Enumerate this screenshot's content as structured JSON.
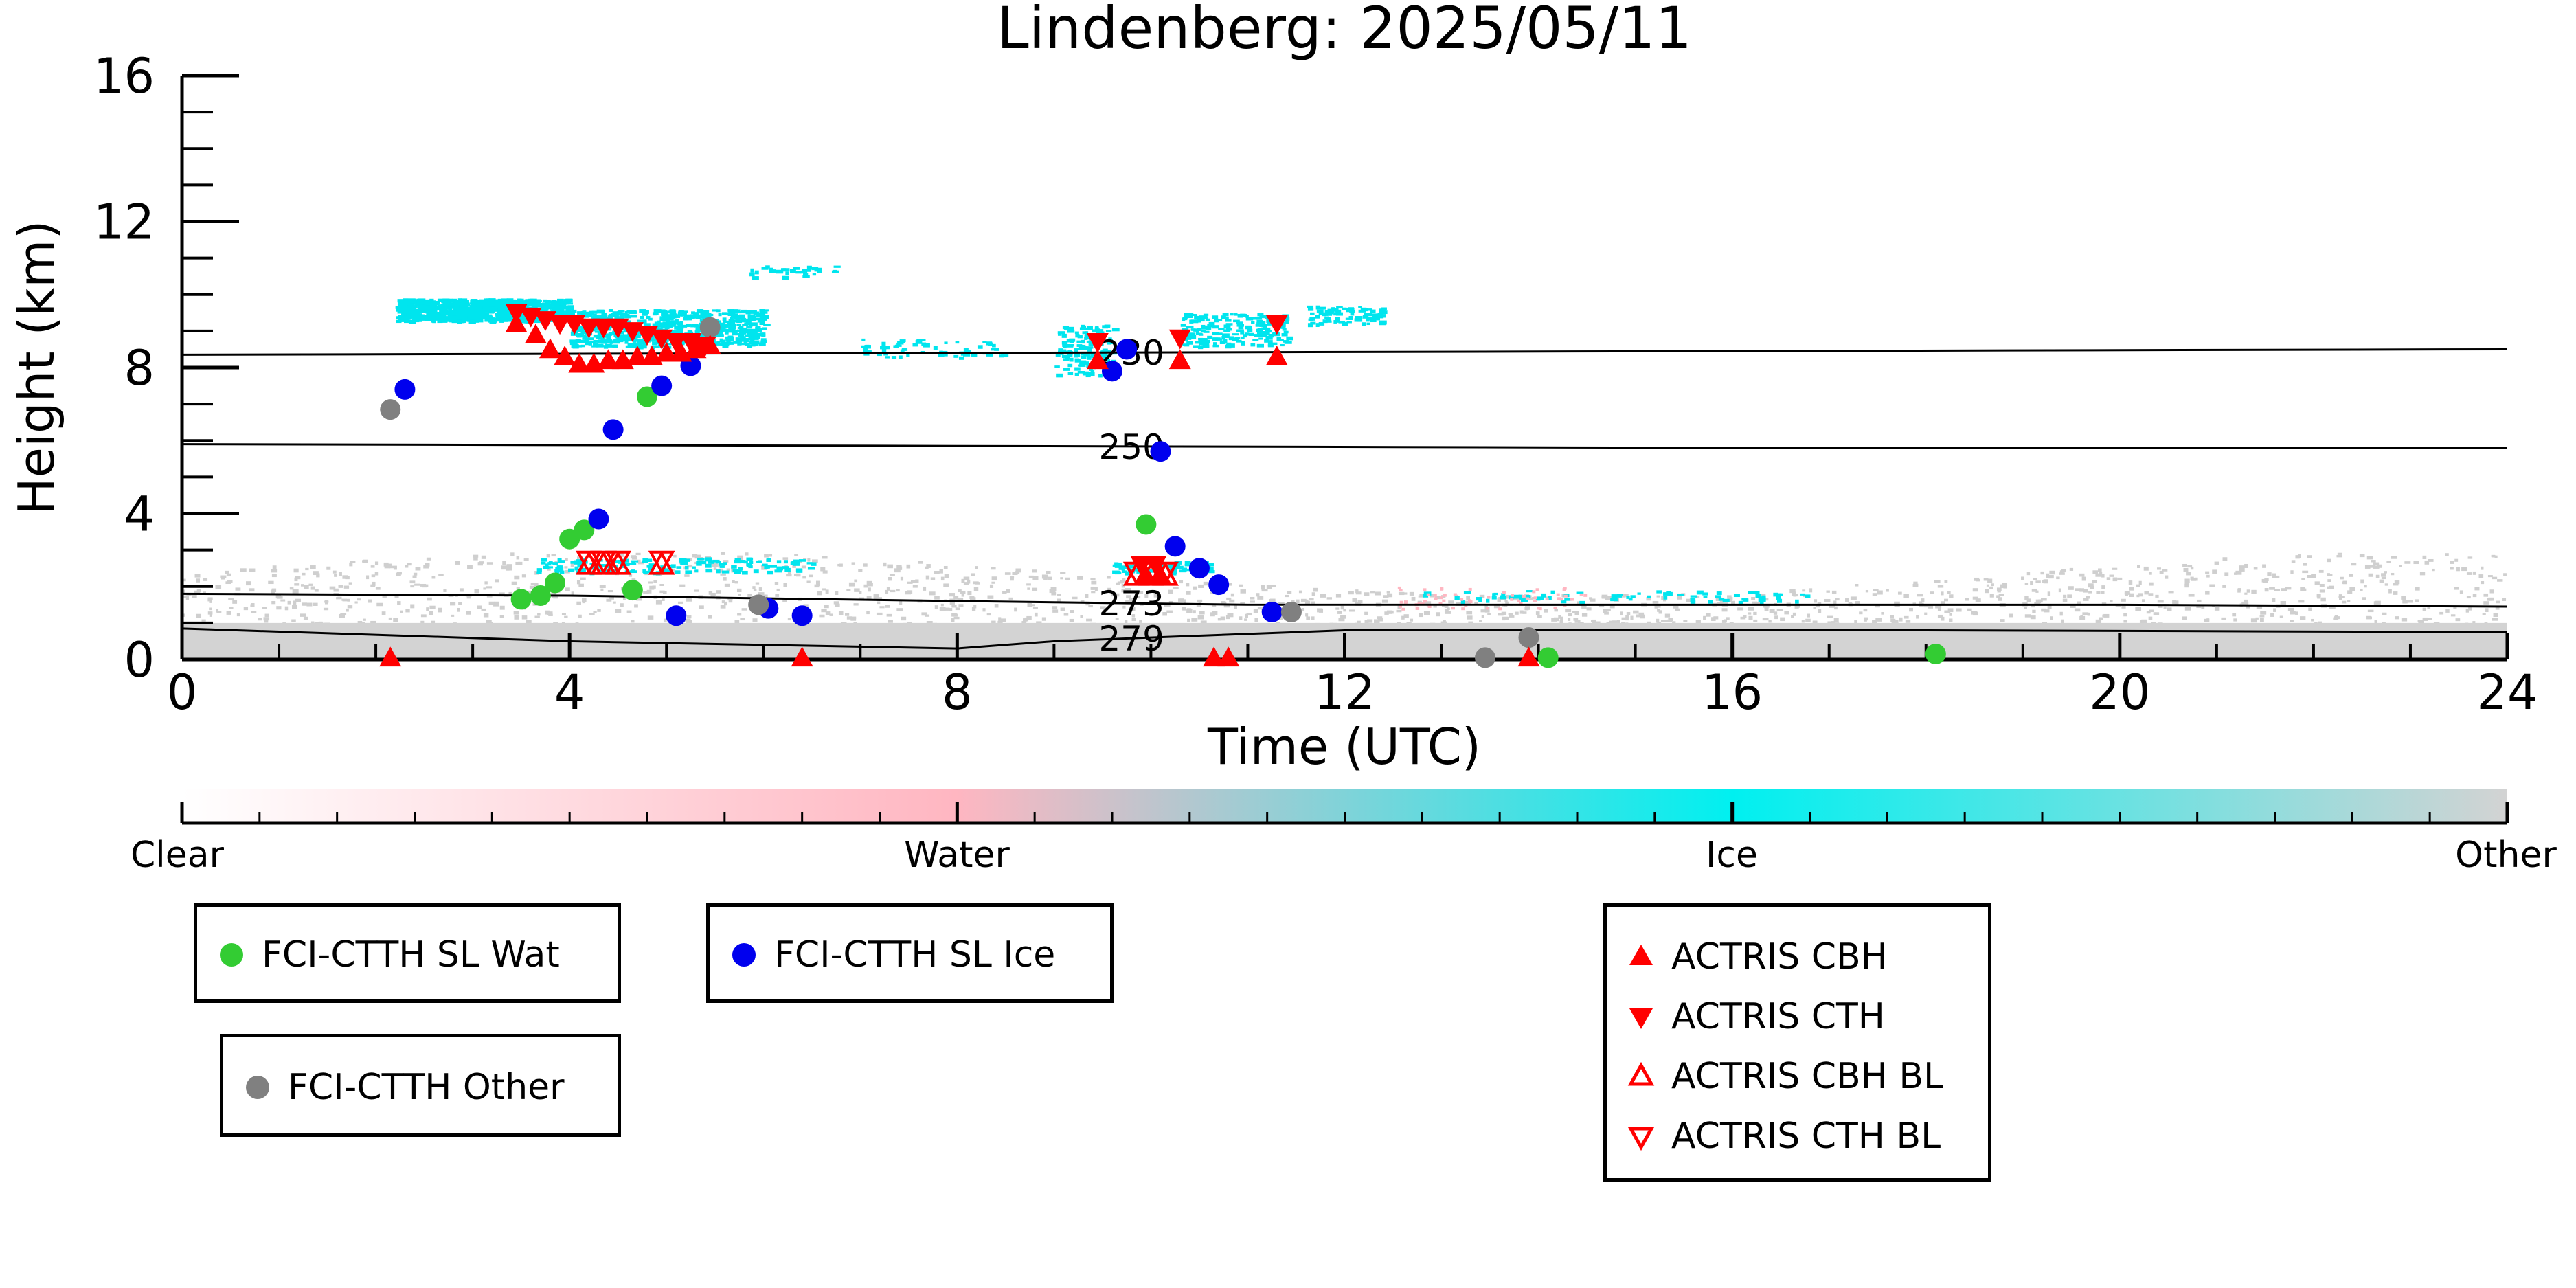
{
  "title": "Lindenberg: 2025/05/11",
  "colors": {
    "water_dot": "#33cc33",
    "ice_dot": "#0000ee",
    "other_dot": "#808080",
    "actris": "#ff0000",
    "cyan": "#00e5ee",
    "pink": "#ffb6c1",
    "gray_bg": "#d3d3d3"
  },
  "chart_data": {
    "type": "scatter",
    "title": "Lindenberg: 2025/05/11",
    "xlabel": "Time (UTC)",
    "ylabel": "Height (km)",
    "xlim": [
      0,
      24
    ],
    "ylim": [
      0,
      16
    ],
    "xticks": [
      "0",
      "4",
      "8",
      "12",
      "16",
      "20",
      "24"
    ],
    "yticks": [
      "0",
      "4",
      "8",
      "12",
      "16"
    ],
    "xtick_values": [
      0,
      4,
      8,
      12,
      16,
      20,
      24
    ],
    "ytick_values": [
      0,
      4,
      8,
      12,
      16
    ],
    "isotherms": [
      {
        "label": "230",
        "label_x": 9.8,
        "points": [
          [
            0,
            8.35
          ],
          [
            8,
            8.4
          ],
          [
            16,
            8.45
          ],
          [
            24,
            8.5
          ]
        ]
      },
      {
        "label": "250",
        "label_x": 9.8,
        "points": [
          [
            0,
            5.9
          ],
          [
            8,
            5.85
          ],
          [
            16,
            5.8
          ],
          [
            24,
            5.8
          ]
        ]
      },
      {
        "label": "273",
        "label_x": 9.8,
        "points": [
          [
            0,
            1.8
          ],
          [
            4,
            1.75
          ],
          [
            8,
            1.6
          ],
          [
            11,
            1.5
          ],
          [
            14,
            1.5
          ],
          [
            20,
            1.5
          ],
          [
            24,
            1.45
          ]
        ]
      },
      {
        "label": "279",
        "label_x": 9.8,
        "points": [
          [
            0,
            0.85
          ],
          [
            4,
            0.5
          ],
          [
            8,
            0.3
          ],
          [
            9,
            0.5
          ],
          [
            12,
            0.8
          ],
          [
            18,
            0.8
          ],
          [
            24,
            0.75
          ]
        ]
      }
    ],
    "series": [
      {
        "name": "FCI-CTTH SL Wat",
        "marker": "circle",
        "color": "#33cc33",
        "x": [
          3.5,
          3.7,
          3.85,
          4.0,
          4.15,
          4.65,
          4.8,
          9.95,
          14.1,
          18.1
        ],
        "y": [
          1.65,
          1.75,
          2.1,
          3.3,
          3.55,
          1.9,
          7.2,
          3.7,
          0.05,
          0.15
        ]
      },
      {
        "name": "FCI-CTTH SL Ice",
        "marker": "circle",
        "color": "#0000ee",
        "x": [
          2.3,
          4.3,
          4.45,
          4.95,
          5.1,
          5.25,
          6.05,
          6.4,
          9.6,
          9.75,
          10.1,
          10.25,
          10.5,
          10.7,
          11.25
        ],
        "y": [
          7.4,
          3.85,
          6.3,
          7.5,
          1.2,
          8.05,
          1.4,
          1.2,
          7.9,
          8.5,
          5.7,
          3.1,
          2.5,
          2.05,
          1.3
        ]
      },
      {
        "name": "FCI-CTTH Other",
        "marker": "circle",
        "color": "#808080",
        "x": [
          2.15,
          5.45,
          5.95,
          11.45,
          13.45,
          13.9
        ],
        "y": [
          6.85,
          9.1,
          1.5,
          1.3,
          0.05,
          0.6
        ]
      },
      {
        "name": "ACTRIS CBH",
        "marker": "triangle-up",
        "color": "#ff0000",
        "x": [
          3.45,
          3.65,
          3.8,
          3.95,
          4.1,
          4.25,
          4.4,
          4.55,
          4.7,
          4.85,
          5.0,
          5.15,
          5.3,
          5.45,
          9.45,
          9.95,
          10.1,
          10.3,
          11.3,
          2.15,
          6.4,
          10.65,
          10.8,
          13.9
        ],
        "y": [
          9.2,
          8.9,
          8.5,
          8.3,
          8.1,
          8.1,
          8.2,
          8.2,
          8.3,
          8.3,
          8.4,
          8.4,
          8.5,
          8.6,
          8.2,
          2.3,
          2.3,
          8.2,
          8.3,
          0.05,
          0.05,
          0.05,
          0.05,
          0.05
        ]
      },
      {
        "name": "ACTRIS CTH",
        "marker": "triangle-down",
        "color": "#ff0000",
        "x": [
          3.45,
          3.6,
          3.75,
          3.9,
          4.05,
          4.2,
          4.35,
          4.5,
          4.65,
          4.8,
          4.95,
          5.1,
          5.25,
          5.4,
          9.45,
          9.9,
          10.05,
          10.3,
          11.3
        ],
        "y": [
          9.5,
          9.4,
          9.3,
          9.2,
          9.2,
          9.1,
          9.1,
          9.1,
          9.0,
          8.9,
          8.8,
          8.7,
          8.7,
          8.6,
          8.7,
          2.6,
          2.6,
          8.8,
          9.2
        ]
      },
      {
        "name": "ACTRIS CBH BL",
        "marker": "triangle-up-open",
        "color": "#ff0000",
        "x": [
          4.2,
          4.35,
          4.5,
          4.95,
          9.85,
          10.0,
          10.15
        ],
        "y": [
          2.6,
          2.6,
          2.6,
          2.6,
          2.3,
          2.3,
          2.3
        ]
      },
      {
        "name": "ACTRIS CTH BL",
        "marker": "triangle-down-open",
        "color": "#ff0000",
        "x": [
          4.2,
          4.35,
          4.5,
          4.95,
          9.85,
          10.0,
          10.15
        ],
        "y": [
          2.7,
          2.7,
          2.7,
          2.7,
          2.4,
          2.4,
          2.4
        ]
      }
    ],
    "colorbar": {
      "labels": [
        "Clear",
        "Water",
        "Ice",
        "Other"
      ],
      "stops": [
        "#ffffff",
        "#ffb6c1",
        "#00f0f0",
        "#d3d3d3"
      ]
    },
    "grid": false
  },
  "legends": {
    "water": "FCI-CTTH SL Wat",
    "ice": "FCI-CTTH SL Ice",
    "other": "FCI-CTTH Other",
    "cbh": "ACTRIS CBH",
    "cth": "ACTRIS CTH",
    "cbh_bl": "ACTRIS CBH BL",
    "cth_bl": "ACTRIS CTH BL"
  }
}
